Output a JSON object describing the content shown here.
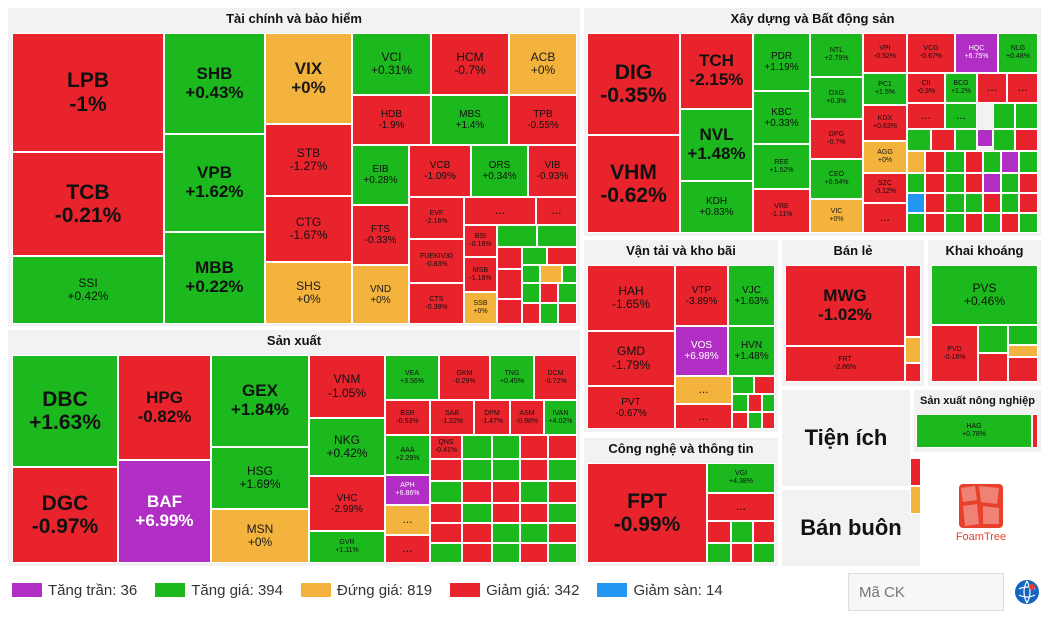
{
  "sectors": {
    "finance": {
      "title": "Tài chính và bảo hiểm"
    },
    "realestate": {
      "title": "Xây dựng và Bất động sản"
    },
    "manufacturing": {
      "title": "Sản xuất"
    },
    "transport": {
      "title": "Vận tải và kho bãi"
    },
    "retail": {
      "title": "Bán lẻ"
    },
    "mining": {
      "title": "Khai khoáng"
    },
    "agri": {
      "title": "Sản xuất nông nghiệp"
    },
    "it": {
      "title": "Công nghệ và thông tin"
    },
    "utilities": {
      "title": "Tiện ích"
    },
    "wholesale": {
      "title": "Bán buôn"
    }
  },
  "tiles": {
    "LPB": {
      "sym": "LPB",
      "chg": "-1%"
    },
    "TCB": {
      "sym": "TCB",
      "chg": "-0.21%"
    },
    "SSI": {
      "sym": "SSI",
      "chg": "+0.42%"
    },
    "SHB": {
      "sym": "SHB",
      "chg": "+0.43%"
    },
    "VPB": {
      "sym": "VPB",
      "chg": "+1.62%"
    },
    "MBB": {
      "sym": "MBB",
      "chg": "+0.22%"
    },
    "VIX": {
      "sym": "VIX",
      "chg": "+0%"
    },
    "STB": {
      "sym": "STB",
      "chg": "-1.27%"
    },
    "CTG": {
      "sym": "CTG",
      "chg": "-1.67%"
    },
    "SHS": {
      "sym": "SHS",
      "chg": "+0%"
    },
    "VCI": {
      "sym": "VCI",
      "chg": "+0.31%"
    },
    "HCM": {
      "sym": "HCM",
      "chg": "-0.7%"
    },
    "ACB": {
      "sym": "ACB",
      "chg": "+0%"
    },
    "HDB": {
      "sym": "HDB",
      "chg": "-1.9%"
    },
    "MBS": {
      "sym": "MBS",
      "chg": "+1.4%"
    },
    "TPB": {
      "sym": "TPB",
      "chg": "-0.55%"
    },
    "EIB": {
      "sym": "EIB",
      "chg": "+0.28%"
    },
    "VCB": {
      "sym": "VCB",
      "chg": "-1.09%"
    },
    "ORS": {
      "sym": "ORS",
      "chg": "+0.34%"
    },
    "VIB": {
      "sym": "VIB",
      "chg": "-0.93%"
    },
    "FTS": {
      "sym": "FTS",
      "chg": "-0.33%"
    },
    "EVF": {
      "sym": "EVF",
      "chg": "-2.16%"
    },
    "FUEKIV30": {
      "sym": "FUEKIV30",
      "chg": "-0.83%"
    },
    "CTS": {
      "sym": "CTS",
      "chg": "-0.38%"
    },
    "VND": {
      "sym": "VND",
      "chg": "+0%"
    },
    "BSI": {
      "sym": "BSI",
      "chg": "-0.16%"
    },
    "MSB": {
      "sym": "MSB",
      "chg": "-1.16%"
    },
    "SSB": {
      "sym": "SSB",
      "chg": "+0%"
    },
    "DIG": {
      "sym": "DIG",
      "chg": "-0.35%"
    },
    "VHM": {
      "sym": "VHM",
      "chg": "-0.62%"
    },
    "TCH": {
      "sym": "TCH",
      "chg": "-2.15%"
    },
    "NVL": {
      "sym": "NVL",
      "chg": "+1.48%"
    },
    "KDH": {
      "sym": "KDH",
      "chg": "+0.83%"
    },
    "PDR": {
      "sym": "PDR",
      "chg": "+1.19%"
    },
    "KBC": {
      "sym": "KBC",
      "chg": "+0.33%"
    },
    "REE": {
      "sym": "REE",
      "chg": "+1.52%"
    },
    "VRE": {
      "sym": "VRE",
      "chg": "-1.11%"
    },
    "NTL": {
      "sym": "NTL",
      "chg": "+2.79%"
    },
    "DXG": {
      "sym": "DXG",
      "chg": "+0.3%"
    },
    "DPG": {
      "sym": "DPG",
      "chg": "-0.7%"
    },
    "CEO": {
      "sym": "CEO",
      "chg": "+0.54%"
    },
    "VIC": {
      "sym": "VIC",
      "chg": "+0%"
    },
    "VPI": {
      "sym": "VPI",
      "chg": "-0.52%"
    },
    "VCG": {
      "sym": "VCG",
      "chg": "-0.67%"
    },
    "HQC": {
      "sym": "HQC",
      "chg": "+6.75%"
    },
    "NLG": {
      "sym": "NLG",
      "chg": "+0.48%"
    },
    "PC1": {
      "sym": "PC1",
      "chg": "+1.5%"
    },
    "CII": {
      "sym": "CII",
      "chg": "-0.3%"
    },
    "BCG": {
      "sym": "BCG",
      "chg": "+1.2%"
    },
    "KDX": {
      "sym": "KDX",
      "chg": "+0.63%"
    },
    "AGG": {
      "sym": "AGG",
      "chg": "+0%"
    },
    "SZC": {
      "sym": "SZC",
      "chg": "-0.12%"
    },
    "DBC": {
      "sym": "DBC",
      "chg": "+1.63%"
    },
    "DGC": {
      "sym": "DGC",
      "chg": "-0.97%"
    },
    "HPG": {
      "sym": "HPG",
      "chg": "-0.82%"
    },
    "BAF": {
      "sym": "BAF",
      "chg": "+6.99%"
    },
    "GEX": {
      "sym": "GEX",
      "chg": "+1.84%"
    },
    "HSG": {
      "sym": "HSG",
      "chg": "+1.69%"
    },
    "MSN": {
      "sym": "MSN",
      "chg": "+0%"
    },
    "VNM": {
      "sym": "VNM",
      "chg": "-1.05%"
    },
    "NKG": {
      "sym": "NKG",
      "chg": "+0.42%"
    },
    "VHC": {
      "sym": "VHC",
      "chg": "-2.99%"
    },
    "GVR": {
      "sym": "GVR",
      "chg": "+1.11%"
    },
    "VEA": {
      "sym": "VEA",
      "chg": "+3.56%"
    },
    "GKM": {
      "sym": "GKM",
      "chg": "-0.29%"
    },
    "TNG": {
      "sym": "TNG",
      "chg": "+0.45%"
    },
    "DCM": {
      "sym": "DCM",
      "chg": "-0.72%"
    },
    "BSR": {
      "sym": "BSR",
      "chg": "-0.53%"
    },
    "SAB": {
      "sym": "SAB",
      "chg": "-1.22%"
    },
    "DPM": {
      "sym": "DPM",
      "chg": "-1.47%"
    },
    "ASM": {
      "sym": "ASM",
      "chg": "-0.98%"
    },
    "IVAN": {
      "sym": "IVAN",
      "chg": "+4.02%"
    },
    "AAA": {
      "sym": "AAA",
      "chg": "+2.29%"
    },
    "QNS": {
      "sym": "QNS",
      "chg": "-0.41%"
    },
    "APH": {
      "sym": "APH",
      "chg": "+6.86%"
    },
    "HAH": {
      "sym": "HAH",
      "chg": "-1.65%"
    },
    "GMD": {
      "sym": "GMD",
      "chg": "-1.79%"
    },
    "PVT": {
      "sym": "PVT",
      "chg": "-0.67%"
    },
    "VTP": {
      "sym": "VTP",
      "chg": "-3.89%"
    },
    "VOS": {
      "sym": "VOS",
      "chg": "+6.98%"
    },
    "VJC": {
      "sym": "VJC",
      "chg": "+1.63%"
    },
    "HVN": {
      "sym": "HVN",
      "chg": "+1.48%"
    },
    "MWG": {
      "sym": "MWG",
      "chg": "-1.02%"
    },
    "FRT": {
      "sym": "FRT",
      "chg": "-2.86%"
    },
    "PVS": {
      "sym": "PVS",
      "chg": "+0.46%"
    },
    "PVD": {
      "sym": "PVD",
      "chg": "-0.16%"
    },
    "HAG": {
      "sym": "HAG",
      "chg": "+0.78%"
    },
    "FPT": {
      "sym": "FPT",
      "chg": "-0.99%"
    },
    "VGI": {
      "sym": "VGI",
      "chg": "+4.38%"
    }
  },
  "more_label": "...",
  "legend": [
    {
      "label": "Tăng trần: 36",
      "color": "#b12ec4"
    },
    {
      "label": "Tăng giá: 394",
      "color": "#1bb81e"
    },
    {
      "label": "Đứng giá: 819",
      "color": "#f3b33d"
    },
    {
      "label": "Giảm giá: 342",
      "color": "#e8232b"
    },
    {
      "label": "Giảm sàn: 14",
      "color": "#2196f3"
    }
  ],
  "search": {
    "placeholder": "Mã CK"
  },
  "logo": {
    "text": "FoamTree"
  }
}
